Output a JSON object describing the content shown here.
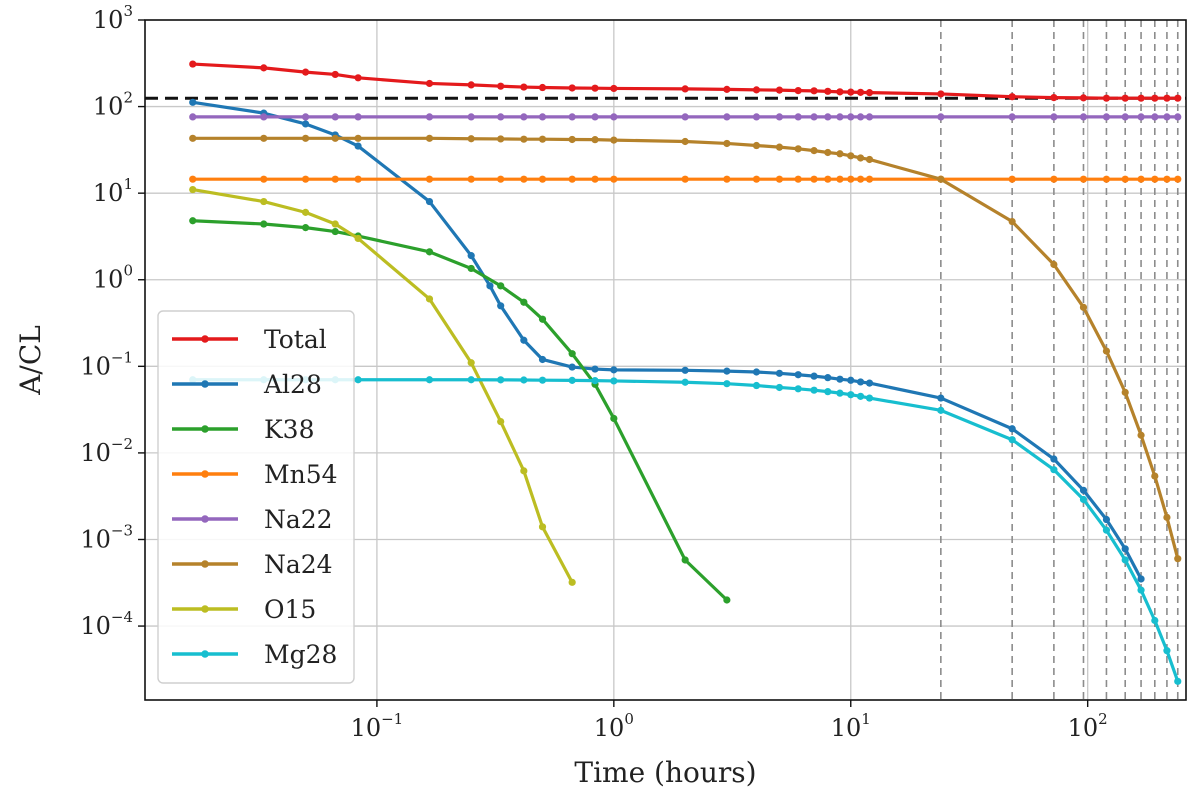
{
  "chart_data": {
    "type": "line",
    "title": "",
    "xlabel": "Time (hours)",
    "ylabel": "A/CL",
    "xscale": "log",
    "yscale": "log",
    "xlim": [
      0.0105,
      260
    ],
    "ylim": [
      1.4e-05,
      1000
    ],
    "x_ticks": [
      {
        "value": 0.1,
        "base": "10",
        "exp": "−1"
      },
      {
        "value": 1,
        "base": "10",
        "exp": "0"
      },
      {
        "value": 10,
        "base": "10",
        "exp": "1"
      },
      {
        "value": 100,
        "base": "10",
        "exp": "2"
      }
    ],
    "y_ticks": [
      {
        "value": 0.0001,
        "base": "10",
        "exp": "−4"
      },
      {
        "value": 0.001,
        "base": "10",
        "exp": "−3"
      },
      {
        "value": 0.01,
        "base": "10",
        "exp": "−2"
      },
      {
        "value": 0.1,
        "base": "10",
        "exp": "−1"
      },
      {
        "value": 1,
        "base": "10",
        "exp": "0"
      },
      {
        "value": 10,
        "base": "10",
        "exp": "1"
      },
      {
        "value": 100,
        "base": "10",
        "exp": "2"
      },
      {
        "value": 1000,
        "base": "10",
        "exp": "3"
      }
    ],
    "grid": true,
    "legend_position": "lower-left",
    "reference_line": {
      "y": 125,
      "style": "dashed",
      "color": "#111111"
    },
    "vertical_markers": [
      24,
      48,
      72,
      96,
      120,
      144,
      168,
      192,
      216,
      240
    ],
    "series": [
      {
        "name": "Total",
        "color": "#e41a1c",
        "x": [
          0.0167,
          0.0333,
          0.05,
          0.0667,
          0.0833,
          0.1667,
          0.25,
          0.333,
          0.417,
          0.5,
          0.667,
          0.833,
          1,
          2,
          3,
          4,
          5,
          6,
          7,
          8,
          9,
          10,
          11,
          12,
          24,
          48,
          72,
          96,
          120,
          144,
          168,
          192,
          216,
          240
        ],
        "y": [
          310,
          280,
          250,
          235,
          215,
          185,
          178,
          172,
          168,
          166,
          164,
          163,
          162,
          160,
          158,
          156,
          155,
          153,
          152,
          150,
          148,
          147,
          146,
          145,
          140,
          130,
          127,
          126,
          125,
          125,
          125,
          125,
          125,
          125
        ]
      },
      {
        "name": "Al28",
        "color": "#1f77b4",
        "x": [
          0.0167,
          0.0333,
          0.05,
          0.0667,
          0.0833,
          0.1667,
          0.25,
          0.3,
          0.333,
          0.417,
          0.5,
          0.667,
          0.833,
          1,
          2,
          3,
          4,
          5,
          6,
          7,
          8,
          9,
          10,
          11,
          12,
          24,
          48,
          72,
          96,
          120,
          144,
          168
        ],
        "y": [
          112,
          84,
          63,
          47,
          35,
          8,
          1.9,
          0.85,
          0.5,
          0.2,
          0.12,
          0.098,
          0.093,
          0.091,
          0.09,
          0.088,
          0.086,
          0.083,
          0.08,
          0.077,
          0.074,
          0.071,
          0.069,
          0.066,
          0.064,
          0.043,
          0.019,
          0.0085,
          0.0037,
          0.0017,
          0.00078,
          0.00035
        ]
      },
      {
        "name": "K38",
        "color": "#2ca02c",
        "x": [
          0.0167,
          0.0333,
          0.05,
          0.0667,
          0.0833,
          0.1667,
          0.25,
          0.333,
          0.417,
          0.5,
          0.667,
          0.833,
          1,
          2,
          3
        ],
        "y": [
          4.8,
          4.4,
          4.0,
          3.6,
          3.2,
          2.1,
          1.35,
          0.85,
          0.55,
          0.35,
          0.14,
          0.062,
          0.025,
          0.00058,
          0.0002
        ]
      },
      {
        "name": "Mn54",
        "color": "#ff7f0e",
        "x": [
          0.0167,
          0.0333,
          0.05,
          0.0667,
          0.0833,
          0.1667,
          0.25,
          0.333,
          0.417,
          0.5,
          0.667,
          0.833,
          1,
          2,
          3,
          4,
          5,
          6,
          7,
          8,
          9,
          10,
          11,
          12,
          24,
          48,
          72,
          96,
          120,
          144,
          168,
          192,
          216,
          240
        ],
        "y": [
          14.5,
          14.5,
          14.5,
          14.5,
          14.5,
          14.5,
          14.5,
          14.5,
          14.5,
          14.5,
          14.5,
          14.5,
          14.5,
          14.5,
          14.5,
          14.5,
          14.5,
          14.5,
          14.5,
          14.5,
          14.5,
          14.5,
          14.5,
          14.5,
          14.5,
          14.5,
          14.5,
          14.5,
          14.5,
          14.5,
          14.5,
          14.5,
          14.5,
          14.5
        ]
      },
      {
        "name": "Na22",
        "color": "#9467bd",
        "x": [
          0.0167,
          0.0333,
          0.05,
          0.0667,
          0.0833,
          0.1667,
          0.25,
          0.333,
          0.417,
          0.5,
          0.667,
          0.833,
          1,
          2,
          3,
          4,
          5,
          6,
          7,
          8,
          9,
          10,
          11,
          12,
          24,
          48,
          72,
          96,
          120,
          144,
          168,
          192,
          216,
          240
        ],
        "y": [
          76,
          76,
          76,
          76,
          76,
          76,
          76,
          76,
          76,
          76,
          76,
          76,
          76,
          76,
          76,
          76,
          76,
          76,
          76,
          76,
          76,
          76,
          76,
          76,
          76,
          76,
          76,
          76,
          76,
          76,
          76,
          76,
          76,
          76
        ]
      },
      {
        "name": "Na24",
        "color": "#b5822b",
        "x": [
          0.0167,
          0.0333,
          0.05,
          0.0667,
          0.0833,
          0.1667,
          0.25,
          0.333,
          0.417,
          0.5,
          0.667,
          0.833,
          1,
          2,
          3,
          4,
          5,
          6,
          7,
          8,
          9,
          10,
          11,
          12,
          24,
          48,
          72,
          96,
          120,
          144,
          168,
          192,
          216,
          240
        ],
        "y": [
          43,
          43,
          43,
          43,
          43,
          43,
          42.5,
          42.3,
          42,
          42,
          41.7,
          41.5,
          41,
          39.5,
          37.5,
          35.5,
          34,
          32.5,
          31,
          29.5,
          28.5,
          27,
          25.5,
          24.5,
          14.5,
          4.7,
          1.5,
          0.48,
          0.15,
          0.05,
          0.016,
          0.0054,
          0.0018,
          0.0006
        ]
      },
      {
        "name": "O15",
        "color": "#bcbd22",
        "x": [
          0.0167,
          0.0333,
          0.05,
          0.0667,
          0.0833,
          0.1667,
          0.25,
          0.333,
          0.417,
          0.5,
          0.667
        ],
        "y": [
          11,
          8,
          6,
          4.4,
          3.0,
          0.6,
          0.11,
          0.023,
          0.0062,
          0.0014,
          0.00032
        ]
      },
      {
        "name": "Mg28",
        "color": "#17becf",
        "x": [
          0.0167,
          0.0333,
          0.05,
          0.0667,
          0.0833,
          0.1667,
          0.25,
          0.333,
          0.417,
          0.5,
          0.667,
          0.833,
          1,
          2,
          3,
          4,
          5,
          6,
          7,
          8,
          9,
          10,
          11,
          12,
          24,
          48,
          72,
          96,
          120,
          144,
          168,
          192,
          216,
          240
        ],
        "y": [
          0.07,
          0.07,
          0.07,
          0.07,
          0.07,
          0.07,
          0.07,
          0.0698,
          0.0695,
          0.0692,
          0.0688,
          0.0683,
          0.0678,
          0.0655,
          0.063,
          0.06,
          0.057,
          0.055,
          0.053,
          0.051,
          0.049,
          0.047,
          0.045,
          0.043,
          0.031,
          0.0142,
          0.0064,
          0.0029,
          0.00128,
          0.00058,
          0.00026,
          0.000116,
          5.2e-05,
          2.3e-05
        ]
      }
    ]
  }
}
